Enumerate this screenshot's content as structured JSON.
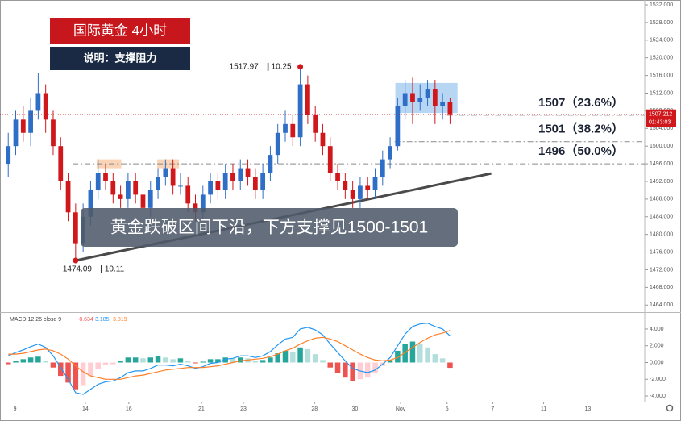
{
  "chart_data": [
    {
      "type": "candlestick",
      "title": "国际黄金  4小时",
      "subtitle": "说明：支撑阻力",
      "annotation": "黄金跌破区间下沿，下方支撑见1500-1501",
      "up_color": "#2f6ec6",
      "down_color": "#d0171c",
      "xlim": [
        -1.1,
        85
      ],
      "xticks": [
        {
          "value": 0.9,
          "label": "9"
        },
        {
          "value": 10.3,
          "label": "14"
        },
        {
          "value": 16.1,
          "label": "16"
        },
        {
          "value": 25.8,
          "label": "21"
        },
        {
          "value": 31.4,
          "label": "23"
        },
        {
          "value": 40.9,
          "label": "28"
        },
        {
          "value": 46.3,
          "label": "30"
        },
        {
          "value": 52.4,
          "label": "Nov"
        },
        {
          "value": 58.6,
          "label": "5"
        },
        {
          "value": 64.7,
          "label": "7"
        },
        {
          "value": 71.5,
          "label": "11"
        },
        {
          "value": 77.4,
          "label": "13"
        }
      ],
      "ylim": [
        1462.4,
        1533.1
      ],
      "yticks": [
        {
          "value": 1464,
          "label": "1464.000"
        },
        {
          "value": 1468,
          "label": "1468.000"
        },
        {
          "value": 1472,
          "label": "1472.000"
        },
        {
          "value": 1476,
          "label": "1476.000"
        },
        {
          "value": 1480,
          "label": "1480.000"
        },
        {
          "value": 1484,
          "label": "1484.000"
        },
        {
          "value": 1488,
          "label": "1488.000"
        },
        {
          "value": 1492,
          "label": "1492.000"
        },
        {
          "value": 1496,
          "label": "1496.000"
        },
        {
          "value": 1500,
          "label": "1500.000"
        },
        {
          "value": 1504,
          "label": "1504.000"
        },
        {
          "value": 1508,
          "label": "1508.000"
        },
        {
          "value": 1512,
          "label": "1512.000"
        },
        {
          "value": 1516,
          "label": "1516.000"
        },
        {
          "value": 1520,
          "label": "1520.000"
        },
        {
          "value": 1524,
          "label": "1524.000"
        },
        {
          "value": 1528,
          "label": "1528.000"
        },
        {
          "value": 1532,
          "label": "1532.000"
        }
      ],
      "open": [
        1496,
        1500,
        1506,
        1503,
        1508,
        1512,
        1506,
        1500,
        1492,
        1485,
        1478,
        1484,
        1490,
        1494,
        1492,
        1489,
        1488,
        1492,
        1489,
        1486,
        1490,
        1493,
        1495,
        1491,
        1491,
        1487,
        1485,
        1489,
        1492,
        1490,
        1494,
        1492,
        1495,
        1493,
        1490,
        1494,
        1498,
        1503,
        1505,
        1502,
        1514,
        1507,
        1503,
        1500,
        1494,
        1492,
        1490,
        1488,
        1491,
        1490,
        1493,
        1497,
        1500,
        1509,
        1512,
        1510,
        1511,
        1513,
        1509,
        1510
      ],
      "high": [
        1503,
        1508,
        1509,
        1511,
        1516.5,
        1514,
        1508,
        1502,
        1494,
        1487,
        1487,
        1492,
        1497,
        1496,
        1494,
        1491,
        1494,
        1494,
        1491,
        1492,
        1495,
        1497,
        1497,
        1494,
        1493,
        1489,
        1491,
        1494,
        1494,
        1496,
        1496,
        1497,
        1497,
        1495,
        1496,
        1500,
        1505,
        1508,
        1507,
        1517.97,
        1516,
        1509,
        1505,
        1502,
        1496,
        1494,
        1492,
        1493,
        1493,
        1495,
        1499,
        1502,
        1511,
        1515,
        1515.5,
        1514,
        1515,
        1515,
        1512,
        1511
      ],
      "low": [
        1493,
        1498,
        1501,
        1500,
        1506,
        1503,
        1498,
        1490,
        1483,
        1474.09,
        1476,
        1482,
        1488,
        1490,
        1487,
        1486,
        1486,
        1487,
        1484,
        1484,
        1488,
        1491,
        1489,
        1489,
        1485,
        1483,
        1483,
        1487,
        1488,
        1488,
        1490,
        1490,
        1491,
        1488,
        1488,
        1492,
        1496,
        1501,
        1500,
        1500,
        1505,
        1501,
        1498,
        1492,
        1490,
        1488,
        1486,
        1486,
        1488,
        1488,
        1491,
        1495,
        1499,
        1506,
        1505,
        1508,
        1509,
        1505,
        1506,
        1505
      ],
      "close": [
        1500,
        1506,
        1503,
        1508,
        1512,
        1506,
        1500,
        1492,
        1485,
        1478,
        1484,
        1490,
        1494,
        1492,
        1489,
        1488,
        1492,
        1489,
        1486,
        1490,
        1493,
        1495,
        1491,
        1491,
        1487,
        1485,
        1489,
        1492,
        1490,
        1494,
        1492,
        1495,
        1493,
        1490,
        1494,
        1498,
        1503,
        1505,
        1502,
        1514,
        1507,
        1503,
        1500,
        1494,
        1492,
        1490,
        1488,
        1491,
        1490,
        1493,
        1497,
        1500,
        1509,
        1512,
        1510,
        1511,
        1513,
        1509,
        1510,
        1507.212
      ],
      "extremes": [
        {
          "index": 39,
          "price": 1517.97,
          "date": "10.25"
        },
        {
          "index": 9,
          "price": 1474.09,
          "date": "10.11"
        }
      ],
      "levels": [
        {
          "price": 1507,
          "start": 58.6,
          "label": "1507（23.6%）"
        },
        {
          "price": 1501,
          "start": 51.6,
          "label": "1501（38.2%）"
        },
        {
          "price": 1496,
          "start": 8.6,
          "label": "1496（50.0%）"
        }
      ],
      "zones": [
        {
          "start": 11.8,
          "end": 15.1,
          "low": 1495,
          "high": 1497,
          "color": "rgba(245,160,95,0.45)"
        },
        {
          "start": 19.9,
          "end": 22.8,
          "low": 1495,
          "high": 1497,
          "color": "rgba(245,160,95,0.45)"
        },
        {
          "start": 51.7,
          "end": 60,
          "low": 1507.5,
          "high": 1514.3,
          "color": "rgba(95,165,230,0.45)"
        }
      ],
      "trendline": {
        "from": [
          9,
          1474.09
        ],
        "to": [
          64.5,
          1493.8
        ],
        "color": "#4a4a4a"
      },
      "price_tag": {
        "price": 1507.212,
        "countdown": "01:43:03",
        "color": "#d0171c"
      }
    },
    {
      "type": "macd",
      "title": "MACD 12 26 close 9",
      "xlim": [
        -1.1,
        85
      ],
      "ylim": [
        -4.67,
        5.92
      ],
      "yticks": [
        {
          "value": 4,
          "label": "4.000"
        },
        {
          "value": 2,
          "label": "2.000"
        },
        {
          "value": 0,
          "label": "0.000"
        },
        {
          "value": -2,
          "label": "-2.000"
        },
        {
          "value": -4,
          "label": "-4.000"
        }
      ],
      "hist_colors": {
        "up_rising": "#26a69a",
        "up_falling": "#b2dfdb",
        "down_falling": "#ef5350",
        "down_rising": "#ffcdd2"
      },
      "series": [
        {
          "kind": "histogram",
          "color": "#ef5350",
          "values": [
            -0.2,
            0.2,
            0.4,
            0.6,
            0.7,
            0.2,
            -0.6,
            -1.6,
            -2.4,
            -3.2,
            -2.7,
            -1.6,
            -0.8,
            -0.3,
            -0.2,
            0.2,
            0.6,
            0.6,
            0.5,
            0.6,
            0.8,
            0.6,
            0.4,
            0.5,
            0.2,
            -0.1,
            0.1,
            0.4,
            0.4,
            0.6,
            0.5,
            0.6,
            0.5,
            0.2,
            0.3,
            0.6,
            1.1,
            1.4,
            1.3,
            1.8,
            1.6,
            1.0,
            0.3,
            -0.6,
            -1.3,
            -1.8,
            -2.2,
            -2.0,
            -1.8,
            -1.2,
            -0.4,
            0.3,
            1.4,
            2.2,
            2.5,
            2.2,
            1.8,
            1.0,
            0.5,
            -0.634
          ]
        },
        {
          "kind": "line",
          "color": "#2196f3",
          "values": [
            0.8,
            1.2,
            1.5,
            1.9,
            2.2,
            1.8,
            0.8,
            -0.6,
            -2.0,
            -3.6,
            -3.8,
            -3.2,
            -2.6,
            -2.3,
            -2.2,
            -1.8,
            -1.2,
            -1.0,
            -1.0,
            -0.7,
            -0.3,
            -0.3,
            -0.4,
            -0.2,
            -0.4,
            -0.7,
            -0.5,
            -0.1,
            0.0,
            0.4,
            0.5,
            0.8,
            0.8,
            0.6,
            0.8,
            1.3,
            2.1,
            2.8,
            3.0,
            4.0,
            4.2,
            3.9,
            3.3,
            2.2,
            1.2,
            0.2,
            -0.7,
            -1.0,
            -1.2,
            -0.9,
            -0.2,
            0.6,
            2.0,
            3.4,
            4.3,
            4.6,
            4.7,
            4.3,
            4.0,
            3.185
          ]
        },
        {
          "kind": "line",
          "color": "#ff7f27",
          "values": [
            1.0,
            1.0,
            1.1,
            1.3,
            1.5,
            1.6,
            1.4,
            1.0,
            0.4,
            -0.4,
            -1.1,
            -1.6,
            -1.8,
            -2.0,
            -2.0,
            -2.0,
            -1.8,
            -1.6,
            -1.5,
            -1.3,
            -1.1,
            -0.9,
            -0.8,
            -0.7,
            -0.6,
            -0.6,
            -0.6,
            -0.5,
            -0.4,
            -0.2,
            0.0,
            0.2,
            0.3,
            0.4,
            0.5,
            0.7,
            1.0,
            1.4,
            1.7,
            2.2,
            2.6,
            2.9,
            3.0,
            2.8,
            2.5,
            2.0,
            1.5,
            1.0,
            0.6,
            0.3,
            0.2,
            0.3,
            0.6,
            1.2,
            1.8,
            2.4,
            2.9,
            3.3,
            3.5,
            3.819
          ]
        }
      ]
    }
  ]
}
